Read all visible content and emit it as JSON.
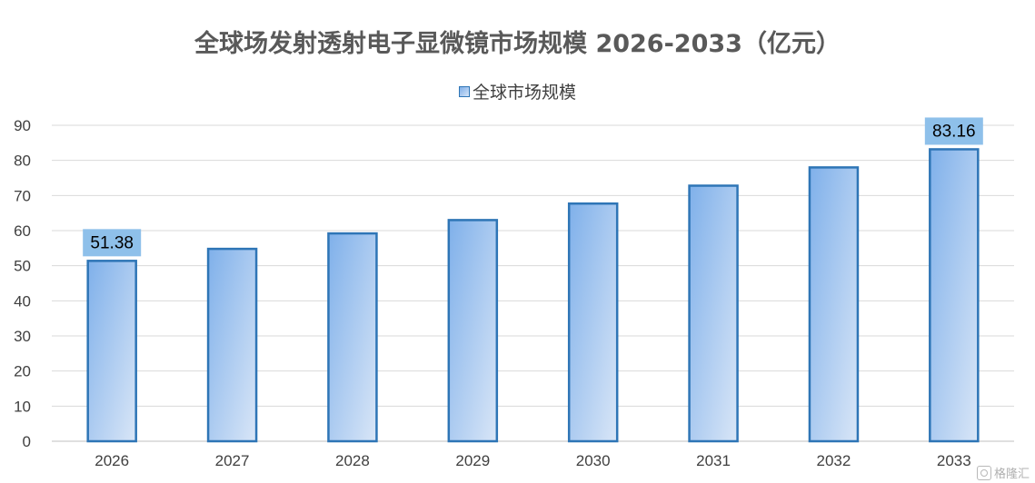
{
  "chart_data": {
    "type": "bar",
    "title": "全球场发射透射电子显微镜市场规模 2026-2033（亿元）",
    "categories": [
      "2026",
      "2027",
      "2028",
      "2029",
      "2030",
      "2031",
      "2032",
      "2033"
    ],
    "series": [
      {
        "name": "全球市场规模",
        "values": [
          51.38,
          54.8,
          59.2,
          63.0,
          67.7,
          72.8,
          78.0,
          83.16
        ]
      }
    ],
    "data_labels": [
      {
        "category": "2026",
        "text": "51.38"
      },
      {
        "category": "2033",
        "text": "83.16"
      }
    ],
    "ylim": [
      0,
      90
    ],
    "yticks": [
      0,
      10,
      20,
      30,
      40,
      50,
      60,
      70,
      80,
      90
    ],
    "grid": true,
    "legend_position": "top-center",
    "colors": {
      "bar_fill_start": "#7fb0ea",
      "bar_fill_end": "#d9e6f7",
      "bar_border": "#2e75b6",
      "label_bg": "#8ec0ea",
      "grid": "#d9d9d9",
      "text": "#404040",
      "title": "#595959"
    }
  },
  "watermark": {
    "icon": "gelonghui-logo-icon",
    "text": "格隆汇"
  }
}
